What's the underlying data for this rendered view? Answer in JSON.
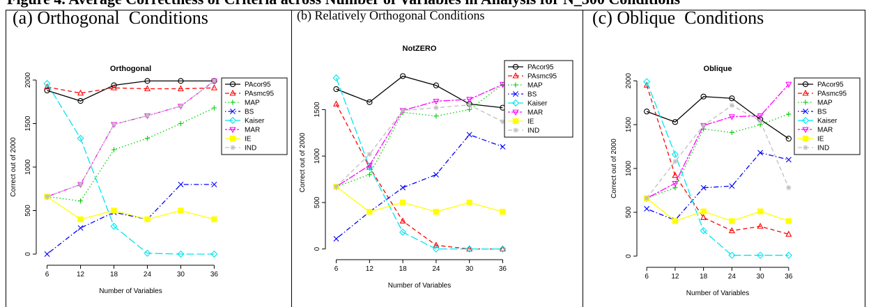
{
  "header": {
    "title": "Figure 4. Average Correctness of Criteria across Number of Variables in Analysis for N_300 Conditions"
  },
  "chart_data": [
    {
      "type": "line",
      "panel_label": "(a) Orthogonal  Conditions",
      "title": "Orthogonal",
      "x_label": "Number of Variables",
      "y_label": "Correct out of 2000",
      "x": [
        6,
        12,
        18,
        24,
        30,
        36
      ],
      "xlim": [
        4.8,
        37.2
      ],
      "xticks": [
        6,
        12,
        18,
        24,
        30,
        36
      ],
      "ylim": [
        -80,
        2080
      ],
      "yticks": [
        0,
        500,
        1000,
        1500,
        2000
      ],
      "series": [
        {
          "name": "PAcor95",
          "color": "#000000",
          "marker": "circle",
          "linestyle": "solid",
          "values": [
            1880,
            1760,
            1940,
            1990,
            1990,
            1990
          ]
        },
        {
          "name": "PAsmc95",
          "color": "#ff0000",
          "marker": "triangle",
          "linestyle": "dashed",
          "values": [
            1920,
            1850,
            1910,
            1900,
            1900,
            1910
          ]
        },
        {
          "name": "MAP",
          "color": "#00cd00",
          "marker": "plus",
          "linestyle": "dotted",
          "values": [
            660,
            610,
            1200,
            1330,
            1500,
            1680
          ]
        },
        {
          "name": "BS",
          "color": "#0000ff",
          "marker": "cross",
          "linestyle": "dotdash",
          "values": [
            0,
            300,
            480,
            400,
            800,
            800
          ]
        },
        {
          "name": "Kaiser",
          "color": "#00e5ee",
          "marker": "diamond",
          "linestyle": "longdash",
          "values": [
            1960,
            1330,
            320,
            10,
            0,
            0
          ]
        },
        {
          "name": "MAR",
          "color": "#ff00ff",
          "marker": "triangle-down",
          "linestyle": "twodash",
          "values": [
            660,
            800,
            1490,
            1590,
            1700,
            1990
          ]
        },
        {
          "name": "IE",
          "color": "#ffff00",
          "marker": "square",
          "linestyle": "solid",
          "values": [
            660,
            400,
            500,
            400,
            500,
            400
          ]
        },
        {
          "name": "IND",
          "color": "#bebebe",
          "marker": "asterisk",
          "linestyle": "dashed",
          "values": [
            660,
            800,
            1490,
            1590,
            1700,
            1990
          ]
        }
      ]
    },
    {
      "type": "line",
      "panel_label": "(b) Relatively Orthogonal Conditions",
      "title": "NotZERO",
      "x_label": "Number of Variables",
      "y_label": "Correct out of 2000",
      "x": [
        6,
        12,
        18,
        24,
        30,
        36
      ],
      "xlim": [
        4.8,
        37.2
      ],
      "xticks": [
        6,
        12,
        18,
        24,
        30,
        36
      ],
      "ylim": [
        -70,
        1930
      ],
      "yticks": [
        0,
        500,
        1000,
        1500
      ],
      "series": [
        {
          "name": "PAcor95",
          "color": "#000000",
          "marker": "circle",
          "linestyle": "solid",
          "values": [
            1720,
            1580,
            1860,
            1760,
            1560,
            1520
          ]
        },
        {
          "name": "PAsmc95",
          "color": "#ff0000",
          "marker": "triangle",
          "linestyle": "dashed",
          "values": [
            1560,
            880,
            300,
            40,
            0,
            0
          ]
        },
        {
          "name": "MAP",
          "color": "#00cd00",
          "marker": "plus",
          "linestyle": "dotted",
          "values": [
            670,
            800,
            1470,
            1430,
            1500,
            1770
          ]
        },
        {
          "name": "BS",
          "color": "#0000ff",
          "marker": "cross",
          "linestyle": "dotdash",
          "values": [
            110,
            400,
            660,
            800,
            1230,
            1100
          ]
        },
        {
          "name": "Kaiser",
          "color": "#00e5ee",
          "marker": "diamond",
          "linestyle": "longdash",
          "values": [
            1840,
            880,
            180,
            0,
            0,
            0
          ]
        },
        {
          "name": "MAR",
          "color": "#ff00ff",
          "marker": "triangle-down",
          "linestyle": "twodash",
          "values": [
            670,
            900,
            1490,
            1590,
            1610,
            1770
          ]
        },
        {
          "name": "IE",
          "color": "#ffff00",
          "marker": "square",
          "linestyle": "solid",
          "values": [
            670,
            400,
            500,
            400,
            500,
            400
          ]
        },
        {
          "name": "IND",
          "color": "#bebebe",
          "marker": "asterisk",
          "linestyle": "dashed",
          "values": [
            670,
            1020,
            1490,
            1520,
            1550,
            1370
          ]
        }
      ]
    },
    {
      "type": "line",
      "panel_label": "(c) Oblique  Conditions",
      "title": "Oblique",
      "x_label": "Number of Variables",
      "y_label": "Correct out of 2000",
      "x": [
        6,
        12,
        18,
        24,
        30,
        36
      ],
      "xlim": [
        4.8,
        37.2
      ],
      "xticks": [
        6,
        12,
        18,
        24,
        30,
        36
      ],
      "ylim": [
        -80,
        2080
      ],
      "yticks": [
        0,
        500,
        1000,
        1500,
        2000
      ],
      "series": [
        {
          "name": "PAcor95",
          "color": "#000000",
          "marker": "circle",
          "linestyle": "solid",
          "values": [
            1650,
            1530,
            1820,
            1800,
            1560,
            1340
          ]
        },
        {
          "name": "PAsmc95",
          "color": "#ff0000",
          "marker": "triangle",
          "linestyle": "dashed",
          "values": [
            1950,
            920,
            440,
            290,
            340,
            250
          ]
        },
        {
          "name": "MAP",
          "color": "#00cd00",
          "marker": "plus",
          "linestyle": "dotted",
          "values": [
            660,
            780,
            1450,
            1410,
            1500,
            1620
          ]
        },
        {
          "name": "BS",
          "color": "#0000ff",
          "marker": "cross",
          "linestyle": "dotdash",
          "values": [
            540,
            410,
            780,
            800,
            1180,
            1100
          ]
        },
        {
          "name": "Kaiser",
          "color": "#00e5ee",
          "marker": "diamond",
          "linestyle": "longdash",
          "values": [
            1990,
            1160,
            290,
            10,
            10,
            10
          ]
        },
        {
          "name": "MAR",
          "color": "#ff00ff",
          "marker": "triangle-down",
          "linestyle": "twodash",
          "values": [
            660,
            830,
            1490,
            1590,
            1600,
            1960
          ]
        },
        {
          "name": "IE",
          "color": "#ffff00",
          "marker": "square",
          "linestyle": "solid",
          "values": [
            660,
            400,
            510,
            400,
            510,
            400
          ]
        },
        {
          "name": "IND",
          "color": "#bebebe",
          "marker": "asterisk",
          "linestyle": "dashed",
          "values": [
            660,
            1080,
            1490,
            1720,
            1540,
            780
          ]
        }
      ]
    }
  ]
}
